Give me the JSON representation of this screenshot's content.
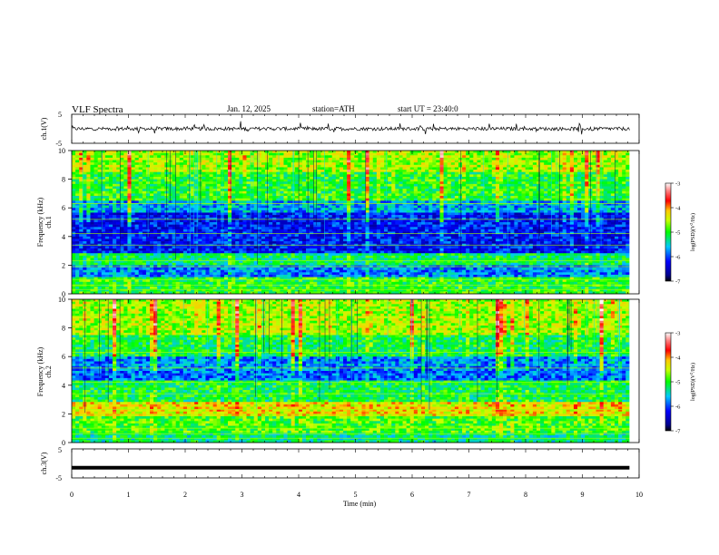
{
  "header": {
    "title": "VLF  Spectra",
    "date": "Jan. 12, 2025",
    "station": "station=ATH",
    "start": "start  UT  =   23:40:0"
  },
  "chart_data": [
    {
      "type": "line",
      "name": "ch1-waveform",
      "ylabel": "ch.1(V)",
      "ylim": [
        -5,
        5
      ],
      "yticks": [
        "5",
        "-5"
      ],
      "xlim": [
        0,
        10
      ],
      "description_level": 0
    },
    {
      "type": "heatmap",
      "name": "ch1-spectrogram",
      "ylabel": "ch.1\nFrequency (kHz)",
      "ylabel_line1": "ch.1",
      "ylabel_line2": "Frequency  (kHz)",
      "ylim": [
        0,
        10
      ],
      "yticks": [
        "0",
        "2",
        "4",
        "6",
        "8",
        "10"
      ],
      "xlim": [
        0,
        10
      ],
      "colorbar": {
        "label": "log(PSD)(V²/Hz)",
        "range": [
          -7,
          -3
        ],
        "ticks": [
          "-3",
          "-4",
          "-5",
          "-6",
          "-7"
        ]
      }
    },
    {
      "type": "heatmap",
      "name": "ch2-spectrogram",
      "ylabel_line1": "ch.2",
      "ylabel_line2": "Frequency  (kHz)",
      "ylim": [
        0,
        10
      ],
      "yticks": [
        "0",
        "2",
        "4",
        "6",
        "8",
        "10"
      ],
      "xlim": [
        0,
        10
      ],
      "colorbar": {
        "label": "log(PSD)(V²/Hz)",
        "range": [
          -7,
          -3
        ],
        "ticks": [
          "-3",
          "-4",
          "-5",
          "-6",
          "-7"
        ]
      }
    },
    {
      "type": "line",
      "name": "ch3-waveform",
      "ylabel": "ch.3(V)",
      "ylim": [
        -5,
        5
      ],
      "yticks": [
        "5",
        "-5"
      ],
      "xlim": [
        0,
        10
      ],
      "level": -1.5
    }
  ],
  "xaxis": {
    "label": "Time  (min)",
    "ticks": [
      "0",
      "1",
      "2",
      "3",
      "4",
      "5",
      "6",
      "7",
      "8",
      "9",
      "10"
    ],
    "data_end": 9.83
  },
  "colorbar_label_main": "log(PSD)(V",
  "colorbar_label_sup": "2",
  "colorbar_label_end": "/Hz)"
}
